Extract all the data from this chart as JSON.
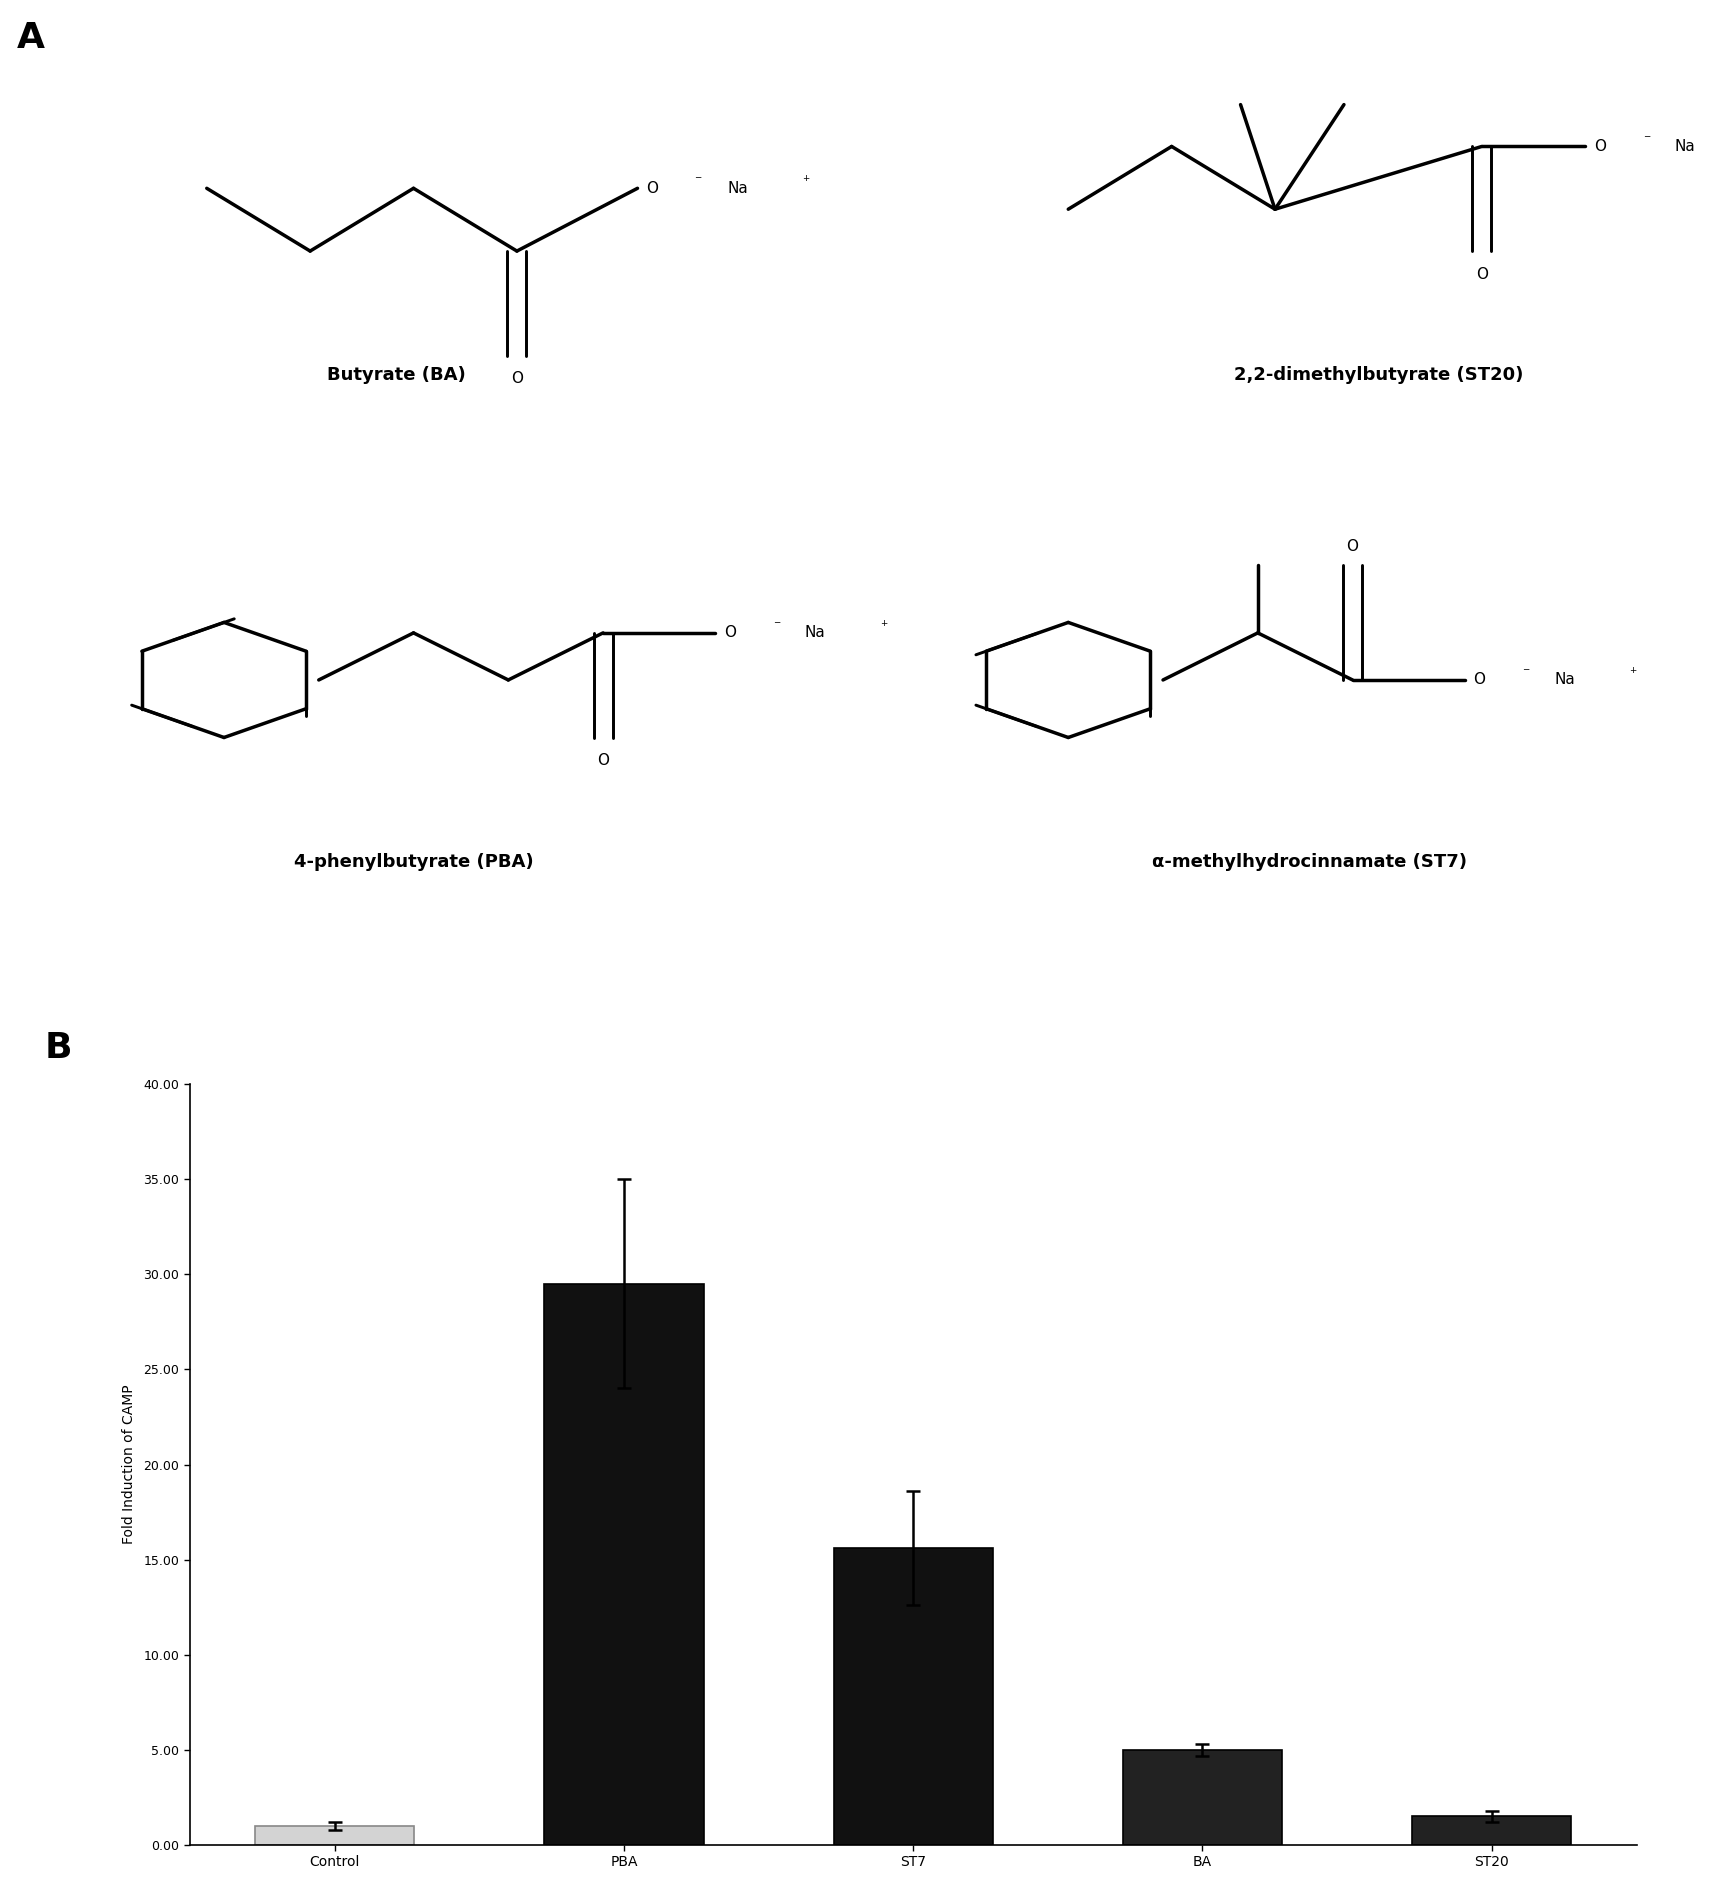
{
  "categories": [
    "Control",
    "PBA",
    "ST7",
    "BA",
    "ST20"
  ],
  "values": [
    1.0,
    29.5,
    15.6,
    5.0,
    1.5
  ],
  "errors": [
    0.2,
    5.5,
    3.0,
    0.3,
    0.3
  ],
  "bar_colors": [
    "#d3d3d3",
    "#111111",
    "#111111",
    "#222222",
    "#222222"
  ],
  "bar_edge_colors": [
    "#888888",
    "#000000",
    "#000000",
    "#000000",
    "#000000"
  ],
  "ylabel": "Fold Induction of CAMP",
  "ylim": [
    0,
    40
  ],
  "yticks": [
    0.0,
    5.0,
    10.0,
    15.0,
    20.0,
    25.0,
    30.0,
    35.0,
    40.0
  ],
  "ytick_labels": [
    "0.00",
    "5.00",
    "10.00",
    "15.00",
    "20.00",
    "25.00",
    "30.00",
    "35.00",
    "40.00"
  ],
  "label_A": "A",
  "label_B": "B",
  "compound_labels": [
    "Butyrate (BA)",
    "2,2-dimethylbutyrate (ST20)",
    "4-phenylbutyrate (PBA)",
    "α-methylhydrocinnamate (ST7)"
  ],
  "background_color": "#ffffff",
  "bar_width": 0.55,
  "fontsize_ylabel": 10,
  "fontsize_ticks": 9,
  "fontsize_xticks": 10,
  "fontsize_label_AB": 26,
  "fontsize_compound": 13
}
